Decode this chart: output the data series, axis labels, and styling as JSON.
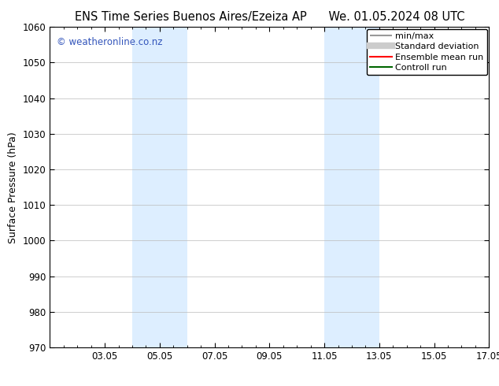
{
  "title_left": "ENS Time Series Buenos Aires/Ezeiza AP",
  "title_right": "We. 01.05.2024 08 UTC",
  "ylabel": "Surface Pressure (hPa)",
  "ylim": [
    970,
    1060
  ],
  "yticks": [
    970,
    980,
    990,
    1000,
    1010,
    1020,
    1030,
    1040,
    1050,
    1060
  ],
  "xlim": [
    1.0,
    17.0
  ],
  "xtick_labels": [
    "03.05",
    "05.05",
    "07.05",
    "09.05",
    "11.05",
    "13.05",
    "15.05",
    "17.05"
  ],
  "xtick_positions": [
    3,
    5,
    7,
    9,
    11,
    13,
    15,
    17
  ],
  "shaded_regions": [
    {
      "x_start": 4.0,
      "x_end": 6.0,
      "color": "#ddeeff"
    },
    {
      "x_start": 11.0,
      "x_end": 13.0,
      "color": "#ddeeff"
    }
  ],
  "watermark_text": "© weatheronline.co.nz",
  "watermark_color": "#3355bb",
  "legend_entries": [
    {
      "label": "min/max",
      "color": "#999999",
      "lw": 1.5
    },
    {
      "label": "Standard deviation",
      "color": "#cccccc",
      "lw": 6
    },
    {
      "label": "Ensemble mean run",
      "color": "#ff0000",
      "lw": 1.5
    },
    {
      "label": "Controll run",
      "color": "#006600",
      "lw": 1.5
    }
  ],
  "background_color": "#ffffff",
  "grid_color": "#bbbbbb",
  "title_fontsize": 10.5,
  "axis_fontsize": 9,
  "tick_fontsize": 8.5,
  "watermark_fontsize": 8.5,
  "legend_fontsize": 8
}
